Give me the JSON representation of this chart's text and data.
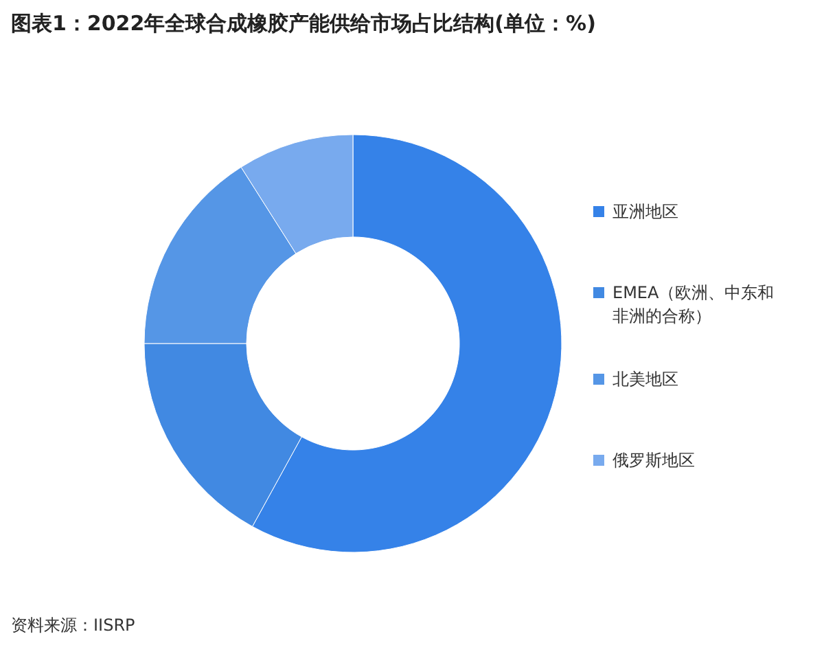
{
  "chart_data": {
    "type": "donut",
    "title": "图表1：2022年全球合成橡胶产能供给市场占比结构(单位：%)",
    "categories": [
      "亚洲地区",
      "EMEA（欧洲、中东和非洲的合称）",
      "北美地区",
      "俄罗斯地区"
    ],
    "values": [
      58,
      17,
      16,
      9
    ],
    "colors": [
      "#3582e8",
      "#4189e2",
      "#5596e6",
      "#78aaee"
    ],
    "legend": "right",
    "annotations": [
      "资料来源：IISRP"
    ]
  }
}
